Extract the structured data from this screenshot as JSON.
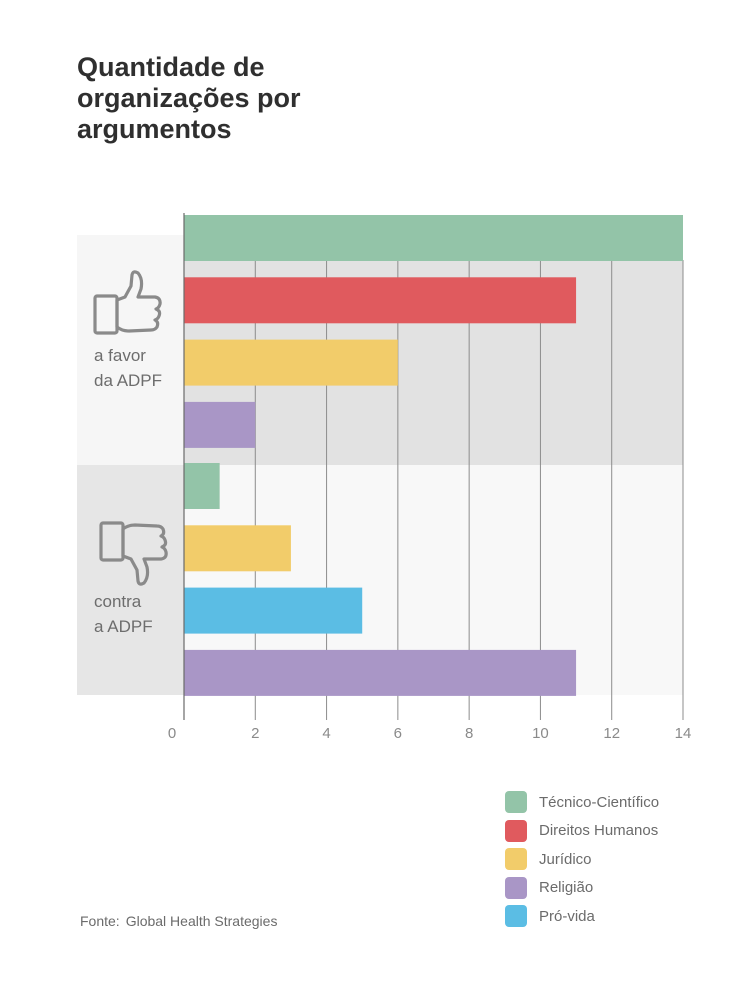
{
  "title": {
    "lines": [
      "Quantidade de",
      "organizações por",
      "argumentos"
    ]
  },
  "colors": {
    "tecnico_cientifico": "#93c4a8",
    "direitos_humanos": "#e05a5e",
    "juridico": "#f2cc6a",
    "religiao": "#a996c6",
    "pro_vida": "#5bbde4"
  },
  "icons": {
    "favor": "thumbs-up-icon",
    "contra": "thumbs-down-icon"
  },
  "legend": [
    {
      "label": "Técnico-Científico",
      "color": "#93c4a8"
    },
    {
      "label": "Direitos Humanos",
      "color": "#e05a5e"
    },
    {
      "label": "Jurídico",
      "color": "#f2cc6a"
    },
    {
      "label": "Religião",
      "color": "#a996c6"
    },
    {
      "label": "Pró-vida",
      "color": "#5bbde4"
    }
  ],
  "source": {
    "prefix": "Fonte:",
    "text": "Global Health Strategies"
  },
  "chart_data": {
    "type": "bar",
    "orientation": "horizontal",
    "title": "Quantidade de organizações por argumentos",
    "xlim": [
      0,
      14
    ],
    "xticks": [
      "0",
      "2",
      "4",
      "6",
      "8",
      "10",
      "12",
      "14"
    ],
    "grid": true,
    "legend_position": "bottom-right",
    "groups": [
      {
        "label_lines": [
          "a favor",
          "da ADPF"
        ],
        "bars": [
          {
            "category": "Técnico-Científico",
            "value": 14,
            "color": "#93c4a8"
          },
          {
            "category": "Direitos Humanos",
            "value": 11,
            "color": "#e05a5e"
          },
          {
            "category": "Jurídico",
            "value": 6,
            "color": "#f2cc6a"
          },
          {
            "category": "Religião",
            "value": 2,
            "color": "#a996c6"
          }
        ]
      },
      {
        "label_lines": [
          "contra",
          "a ADPF"
        ],
        "bars": [
          {
            "category": "Técnico-Científico",
            "value": 1,
            "color": "#93c4a8"
          },
          {
            "category": "Jurídico",
            "value": 3,
            "color": "#f2cc6a"
          },
          {
            "category": "Pró-vida",
            "value": 5,
            "color": "#5bbde4"
          },
          {
            "category": "Religião",
            "value": 11,
            "color": "#a996c6"
          }
        ]
      }
    ]
  }
}
